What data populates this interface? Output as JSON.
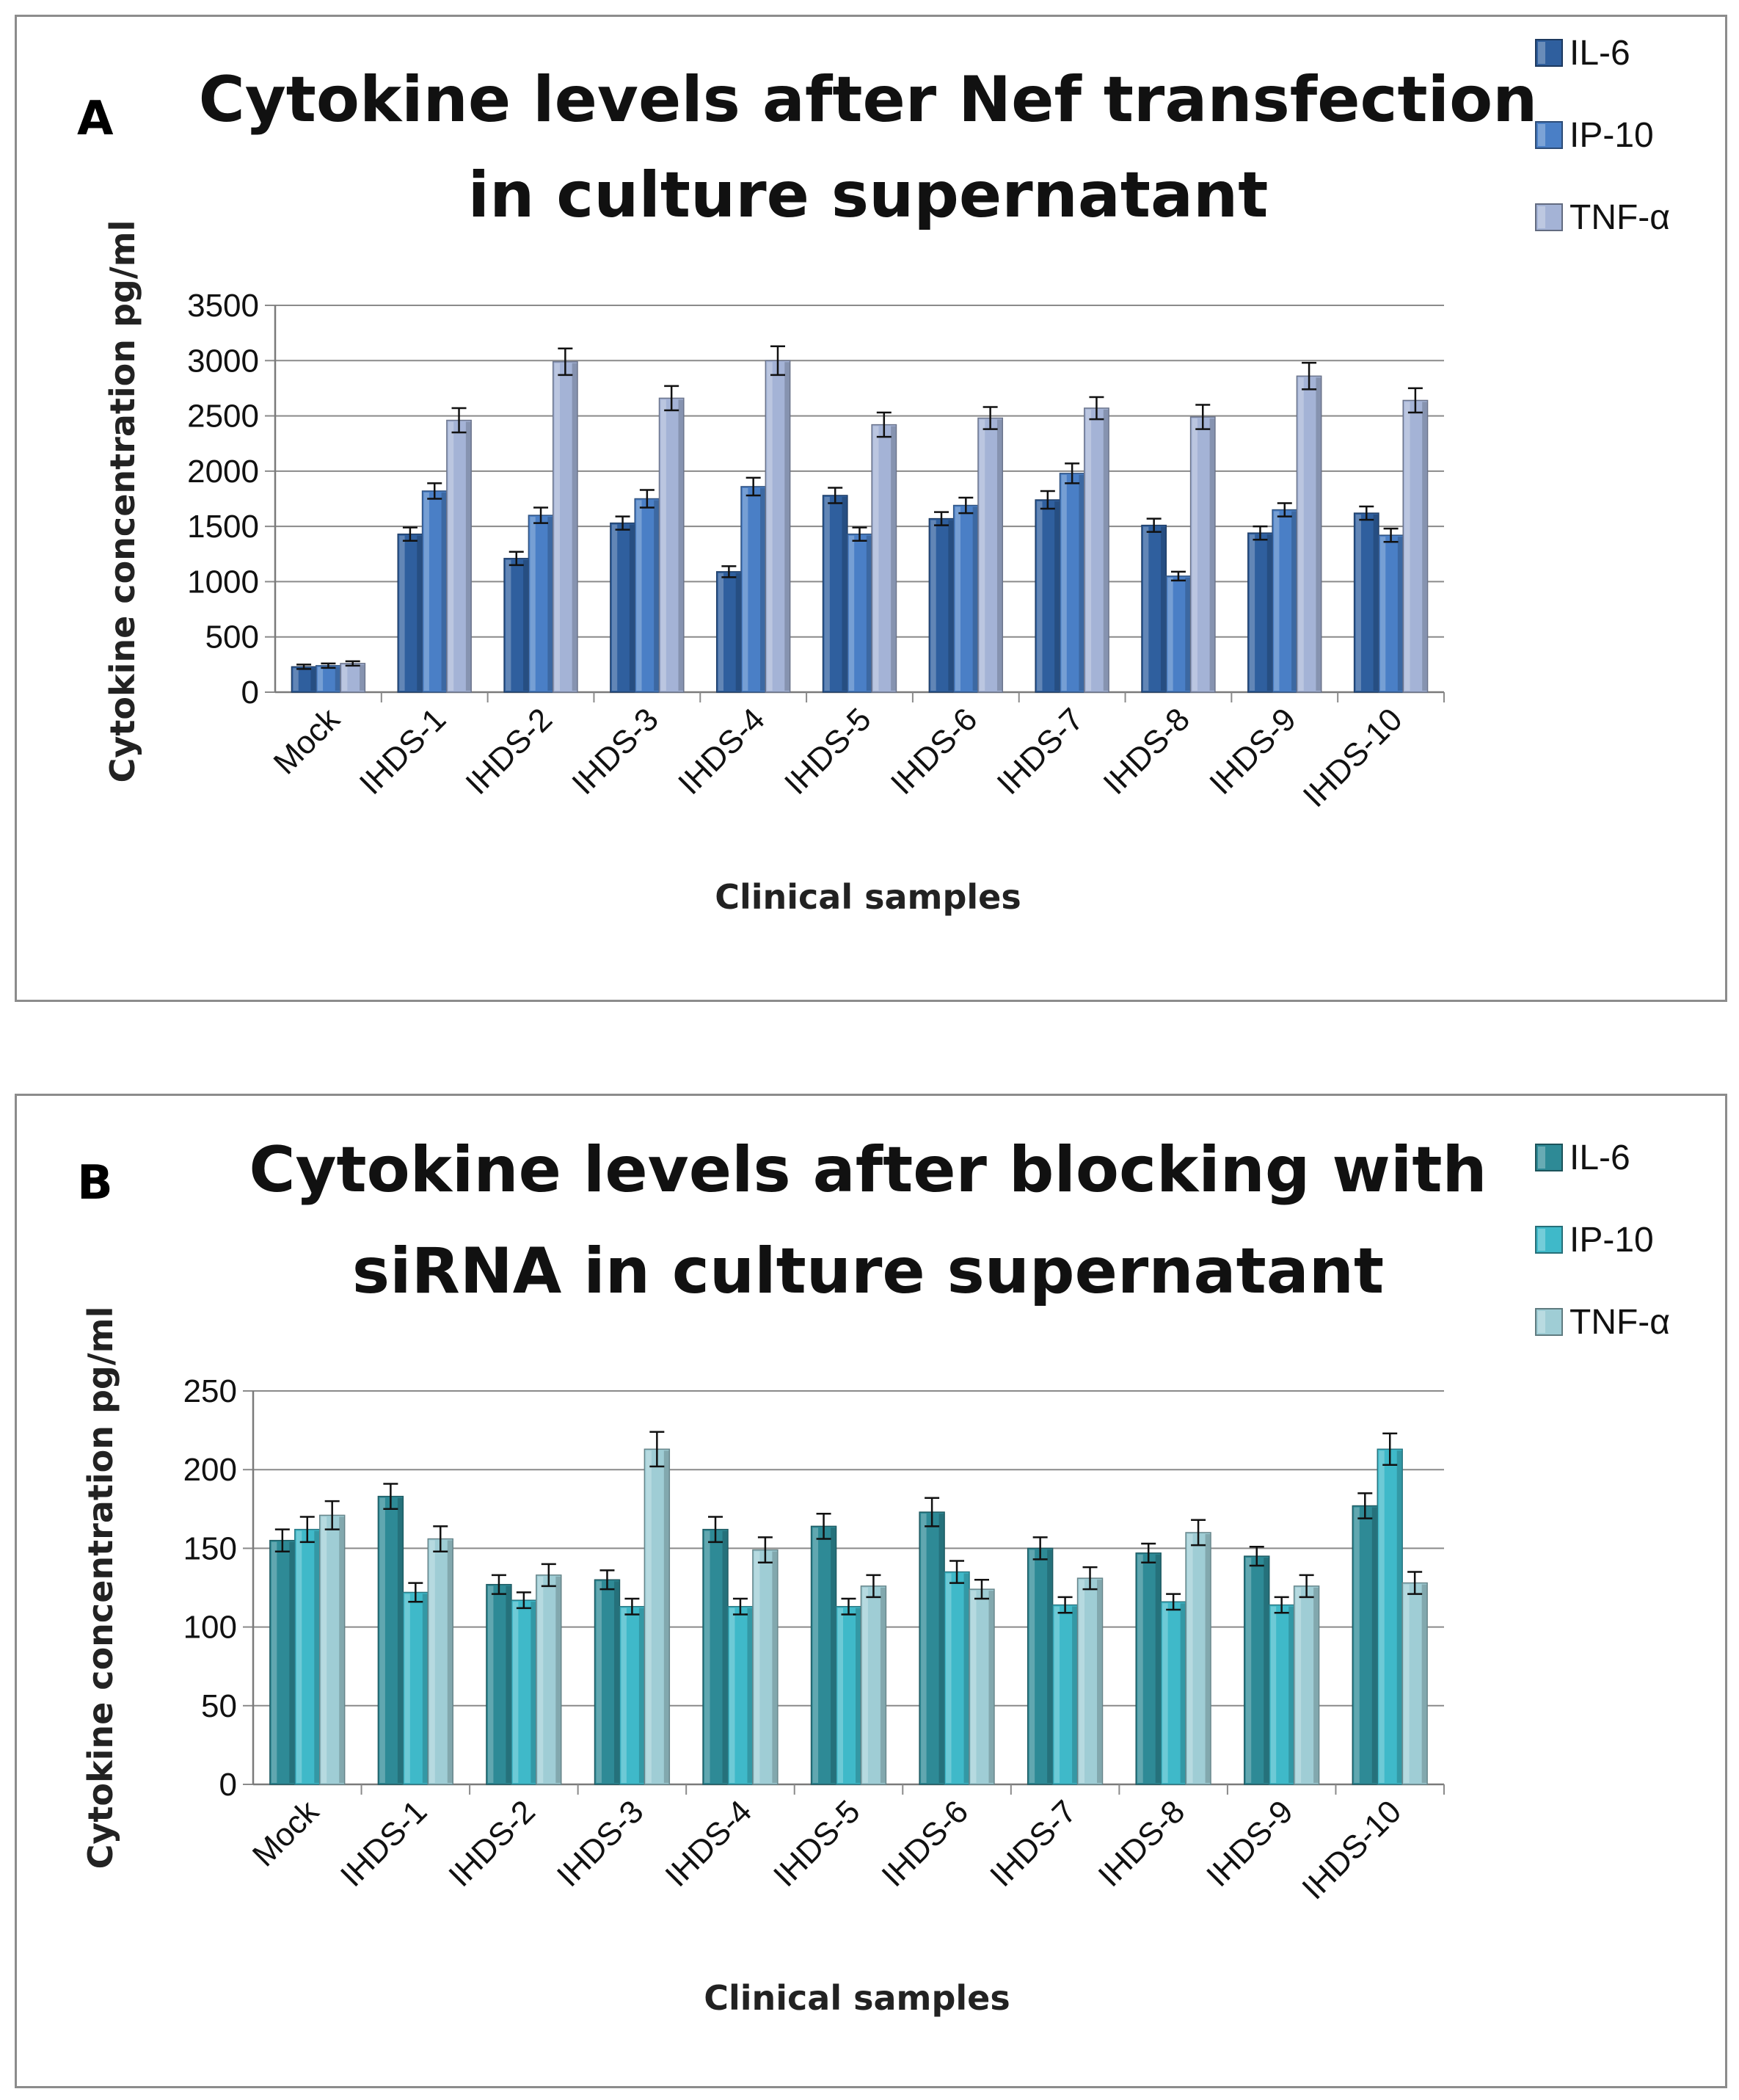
{
  "chart_data": [
    {
      "type": "bar",
      "panel_letter": "A",
      "title_lines": [
        "Cytokine levels after Nef transfection",
        "in culture supernatant"
      ],
      "xlabel": "Clinical samples",
      "ylabel": "Cytokine concentration pg/ml",
      "ylim": [
        0,
        3500
      ],
      "yticks": [
        0,
        500,
        1000,
        1500,
        2000,
        2500,
        3000,
        3500
      ],
      "grid": true,
      "legend_position": "top-right",
      "categories": [
        "Mock",
        "IHDS-1",
        "IHDS-2",
        "IHDS-3",
        "IHDS-4",
        "IHDS-5",
        "IHDS-6",
        "IHDS-7",
        "IHDS-8",
        "IHDS-9",
        "IHDS-10"
      ],
      "series": [
        {
          "name": "IL-6",
          "color": "#2f5f9e",
          "values": [
            230,
            1430,
            1210,
            1530,
            1090,
            1780,
            1570,
            1740,
            1510,
            1440,
            1620
          ],
          "errors": [
            20,
            60,
            60,
            60,
            50,
            70,
            60,
            80,
            60,
            60,
            60
          ]
        },
        {
          "name": "IP-10",
          "color": "#4a7fc6",
          "values": [
            240,
            1820,
            1600,
            1750,
            1860,
            1430,
            1690,
            1980,
            1050,
            1650,
            1420
          ],
          "errors": [
            20,
            70,
            70,
            80,
            80,
            60,
            70,
            90,
            40,
            60,
            60
          ]
        },
        {
          "name": "TNF-α",
          "color": "#a4b3d6",
          "values": [
            260,
            2460,
            2990,
            2660,
            3000,
            2420,
            2480,
            2570,
            2490,
            2860,
            2640
          ],
          "errors": [
            20,
            110,
            120,
            110,
            130,
            110,
            100,
            100,
            110,
            120,
            110
          ]
        }
      ]
    },
    {
      "type": "bar",
      "panel_letter": "B",
      "title_lines": [
        "Cytokine levels after blocking with",
        "siRNA in culture supernatant"
      ],
      "xlabel": "Clinical samples",
      "ylabel": "Cytokine concentration pg/ml",
      "ylim": [
        0,
        250
      ],
      "yticks": [
        0,
        50,
        100,
        150,
        200,
        250
      ],
      "grid": true,
      "legend_position": "top-right",
      "categories": [
        "Mock",
        "IHDS-1",
        "IHDS-2",
        "IHDS-3",
        "IHDS-4",
        "IHDS-5",
        "IHDS-6",
        "IHDS-7",
        "IHDS-8",
        "IHDS-9",
        "IHDS-10"
      ],
      "series": [
        {
          "name": "IL-6",
          "color": "#2e8a96",
          "values": [
            155,
            183,
            127,
            130,
            162,
            164,
            173,
            150,
            147,
            145,
            177
          ],
          "errors": [
            7,
            8,
            6,
            6,
            8,
            8,
            9,
            7,
            6,
            6,
            8
          ]
        },
        {
          "name": "IP-10",
          "color": "#3fb9c9",
          "values": [
            162,
            122,
            117,
            113,
            113,
            113,
            135,
            114,
            116,
            114,
            213
          ],
          "errors": [
            8,
            6,
            5,
            5,
            5,
            5,
            7,
            5,
            5,
            5,
            10
          ]
        },
        {
          "name": "TNF-α",
          "color": "#9fcdd5",
          "values": [
            171,
            156,
            133,
            213,
            149,
            126,
            124,
            131,
            160,
            126,
            128
          ],
          "errors": [
            9,
            8,
            7,
            11,
            8,
            7,
            6,
            7,
            8,
            7,
            7
          ]
        }
      ]
    }
  ]
}
